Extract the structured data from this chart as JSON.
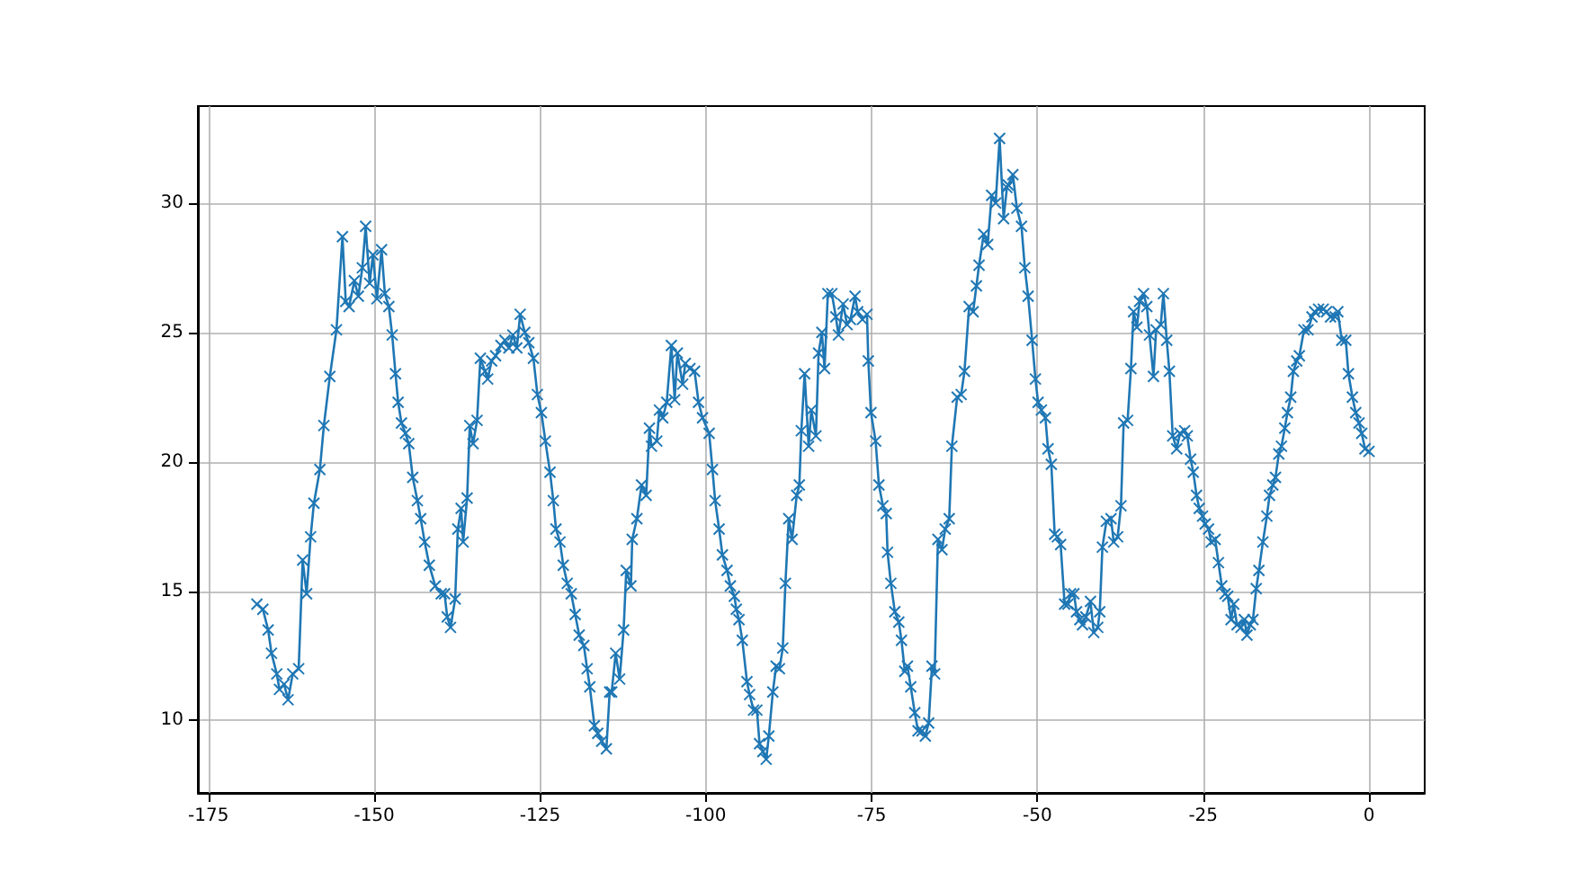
{
  "chart_data": {
    "type": "line",
    "marker": "cross",
    "line_style": "solid",
    "grid": true,
    "xlim": [
      -176.6,
      8.4
    ],
    "xticks": [
      -175,
      -150,
      -125,
      -100,
      -75,
      -50,
      -25,
      0
    ],
    "ylim": [
      7.2,
      33.75
    ],
    "yticks": [
      10,
      15,
      20,
      25,
      30
    ],
    "x": [
      -167.7,
      -166.8,
      -166,
      -165.5,
      -164.7,
      -164.3,
      -163.6,
      -163,
      -162.3,
      -161.4,
      -160.8,
      -160.2,
      -159.6,
      -159.1,
      -158.2,
      -157.6,
      -156.7,
      -155.7,
      -154.8,
      -154.3,
      -153.8,
      -153,
      -152.4,
      -151.8,
      -151.3,
      -150.7,
      -150.2,
      -149.6,
      -148.9,
      -148.4,
      -147.8,
      -147.3,
      -146.8,
      -146.4,
      -145.9,
      -145.3,
      -144.8,
      -144.2,
      -143.5,
      -143,
      -142.4,
      -141.7,
      -140.8,
      -139.9,
      -139.4,
      -139,
      -138.5,
      -137.8,
      -137.4,
      -136.9,
      -136.6,
      -136,
      -135.6,
      -135.1,
      -134.5,
      -134,
      -133.3,
      -132.9,
      -132.3,
      -131.7,
      -130.9,
      -130.3,
      -129.7,
      -129.1,
      -128.5,
      -128,
      -127.3,
      -126.7,
      -126,
      -125.4,
      -124.8,
      -124.2,
      -123.5,
      -123,
      -122.6,
      -122,
      -121.5,
      -120.9,
      -120.3,
      -119.7,
      -119.1,
      -118.4,
      -117.9,
      -117.5,
      -116.8,
      -116.3,
      -115.7,
      -115,
      -114.5,
      -114.2,
      -113.6,
      -113,
      -112.4,
      -112,
      -111.3,
      -111.1,
      -110.4,
      -109.7,
      -109,
      -108.5,
      -108.2,
      -107.4,
      -107,
      -106.5,
      -105.9,
      -105.2,
      -104.7,
      -104.3,
      -103.5,
      -103.1,
      -102.4,
      -101.7,
      -101.1,
      -100.5,
      -99.5,
      -99,
      -98.6,
      -98,
      -97.5,
      -96.8,
      -96.3,
      -95.7,
      -95.4,
      -95,
      -94.5,
      -93.8,
      -93.4,
      -92.8,
      -92.3,
      -91.9,
      -91.4,
      -90.9,
      -90.5,
      -89.9,
      -89.4,
      -88.9,
      -88.4,
      -88,
      -87.5,
      -87,
      -86.3,
      -85.9,
      -85.6,
      -85.1,
      -84.5,
      -84.1,
      -83.4,
      -83,
      -82.5,
      -82.1,
      -81.6,
      -81,
      -80.4,
      -80,
      -79.3,
      -78.7,
      -78.2,
      -77.5,
      -77.1,
      -76.4,
      -75.7,
      -75.5,
      -75.1,
      -74.4,
      -73.9,
      -73.3,
      -72.8,
      -72.6,
      -72.1,
      -71.5,
      -70.9,
      -70.5,
      -70,
      -69.6,
      -69.1,
      -68.5,
      -68,
      -67.4,
      -66.9,
      -66.4,
      -65.9,
      -65.5,
      -65,
      -64.4,
      -63.9,
      -63.3,
      -62.9,
      -62.1,
      -61.5,
      -61,
      -60.3,
      -59.7,
      -59.2,
      -58.8,
      -58.1,
      -57.5,
      -56.9,
      -56.3,
      -55.7,
      -55.1,
      -54.6,
      -54.4,
      -53.7,
      -53.1,
      -52.4,
      -51.9,
      -51.4,
      -50.8,
      -50.3,
      -49.9,
      -49.4,
      -48.8,
      -48.4,
      -47.9,
      -47.4,
      -47,
      -46.5,
      -45.9,
      -45.4,
      -45,
      -44.5,
      -44.1,
      -43.6,
      -43.2,
      -42.7,
      -42,
      -41.5,
      -40.9,
      -40.6,
      -40.2,
      -39.6,
      -38.9,
      -38.5,
      -37.9,
      -37.4,
      -37,
      -36.4,
      -35.9,
      -35.5,
      -35,
      -34.6,
      -34,
      -33.5,
      -33.1,
      -32.5,
      -32.1,
      -31.4,
      -31,
      -30.5,
      -30.1,
      -29.6,
      -29,
      -28.5,
      -27.8,
      -27.4,
      -26.9,
      -26.5,
      -26,
      -25.6,
      -25.1,
      -24.7,
      -24.2,
      -23.8,
      -23.2,
      -22.7,
      -22.2,
      -21.7,
      -21.3,
      -20.8,
      -20.4,
      -19.9,
      -19.3,
      -18.8,
      -18.4,
      -17.9,
      -17.5,
      -17,
      -16.6,
      -16,
      -15.4,
      -15,
      -14.5,
      -14.1,
      -13.6,
      -13.2,
      -12.7,
      -12.3,
      -11.8,
      -11.4,
      -10.9,
      -10.5,
      -9.8,
      -9.2,
      -8.6,
      -8.2,
      -7.6,
      -6.9,
      -6.4,
      -5.8,
      -5.1,
      -4.7,
      -4.1,
      -3.5,
      -3.1,
      -2.5,
      -2,
      -1.5,
      -1.1,
      -0.6,
      0
    ],
    "series": [
      {
        "color": "#1f77b4",
        "values": [
          14.5,
          14.3,
          13.5,
          12.6,
          11.8,
          11.2,
          11.4,
          10.8,
          11.8,
          12,
          16.2,
          14.9,
          17.1,
          18.4,
          19.7,
          21.4,
          23.3,
          25.1,
          28.7,
          26.2,
          26,
          27,
          26.4,
          27.5,
          29.1,
          26.9,
          28,
          26.3,
          28.2,
          26.5,
          26,
          24.9,
          23.4,
          22.3,
          21.5,
          21.1,
          20.7,
          19.4,
          18.5,
          17.8,
          16.9,
          16,
          15.2,
          14.9,
          14.9,
          14,
          13.6,
          14.7,
          17.4,
          18.2,
          16.9,
          18.6,
          21.4,
          20.7,
          21.6,
          24,
          23.5,
          23.2,
          23.9,
          24.1,
          24.5,
          24.7,
          24.4,
          24.9,
          24.4,
          25.7,
          25,
          24.6,
          24,
          22.6,
          21.9,
          20.8,
          19.6,
          18.5,
          17.4,
          16.9,
          16,
          15.3,
          14.9,
          14.1,
          13.3,
          12.9,
          12,
          11.3,
          9.8,
          9.5,
          9.2,
          8.9,
          11.1,
          11.1,
          12.6,
          11.6,
          13.5,
          15.8,
          15.2,
          17,
          17.8,
          19.1,
          18.7,
          21.3,
          20.6,
          20.8,
          22,
          21.7,
          22.3,
          24.5,
          22.4,
          24.2,
          23,
          23.8,
          23.6,
          23.5,
          22.3,
          21.7,
          21.1,
          19.7,
          18.5,
          17.4,
          16.4,
          15.8,
          15.2,
          14.8,
          14.3,
          13.9,
          13.1,
          11.5,
          11,
          10.4,
          10.4,
          9.1,
          8.8,
          8.5,
          9.4,
          11.1,
          12.1,
          12,
          12.8,
          15.3,
          17.8,
          17,
          18.7,
          19.1,
          21.2,
          23.4,
          20.6,
          22,
          21,
          24.2,
          25,
          23.6,
          26.5,
          26.5,
          25.6,
          24.9,
          26.1,
          25.3,
          25.5,
          26.4,
          25.8,
          25.5,
          25.7,
          23.9,
          21.9,
          20.8,
          19.1,
          18.3,
          18,
          16.5,
          15.3,
          14.2,
          13.8,
          13.1,
          11.9,
          12.1,
          11.3,
          10.3,
          9.6,
          9.6,
          9.4,
          9.9,
          12.1,
          11.8,
          17,
          16.6,
          17.4,
          17.8,
          20.6,
          22.5,
          22.6,
          23.5,
          26,
          25.8,
          26.8,
          27.6,
          28.8,
          28.4,
          30.3,
          30,
          32.5,
          29.4,
          30.6,
          30.7,
          31.1,
          29.8,
          29.1,
          27.5,
          26.4,
          24.7,
          23.2,
          22.3,
          22,
          21.7,
          20.5,
          19.9,
          17.2,
          17.1,
          16.8,
          14.5,
          14.5,
          14.9,
          14.9,
          14.2,
          13.9,
          13.7,
          14,
          14.6,
          13.4,
          13.6,
          14.2,
          16.7,
          17.7,
          17.8,
          16.9,
          17.1,
          18.3,
          21.5,
          21.6,
          23.6,
          25.8,
          25.2,
          26.2,
          26.5,
          26,
          24.9,
          23.3,
          25.1,
          25.3,
          26.5,
          24.7,
          23.5,
          21,
          20.5,
          21.1,
          21.2,
          21,
          20.1,
          19.6,
          18.7,
          18.2,
          17.9,
          17.6,
          17.4,
          16.9,
          17,
          16.1,
          15.2,
          14.9,
          14.8,
          13.9,
          14.5,
          13.7,
          13.6,
          13.9,
          13.3,
          13.7,
          13.9,
          15.1,
          15.8,
          16.9,
          17.9,
          18.7,
          19.1,
          19.4,
          20.3,
          20.6,
          21.3,
          21.9,
          22.5,
          23.5,
          23.9,
          24.1,
          25.1,
          25.1,
          25.6,
          25.8,
          25.9,
          25.9,
          25.8,
          25.6,
          25.6,
          25.8,
          24.7,
          24.7,
          23.4,
          22.5,
          21.9,
          21.5,
          21.1,
          20.5,
          20.4
        ]
      }
    ]
  }
}
